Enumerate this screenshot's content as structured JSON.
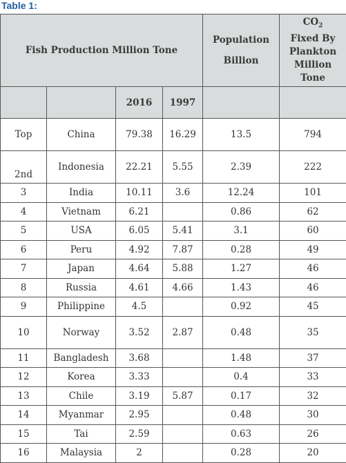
{
  "caption": "Table 1:",
  "headers": {
    "fish_production": "Fish Production Million Tone",
    "year_2016": "2016",
    "year_1997": "1997",
    "population_line1": "Population",
    "population_line2": "Billion",
    "co2_prefix": "CO",
    "co2_subscript": "2",
    "co2_line2": "Fixed By",
    "co2_line3": "Plankton",
    "co2_line4": "Million",
    "co2_line5": "Tone"
  },
  "rows": [
    {
      "rank": "Top",
      "country": "China",
      "y2016": "79.38",
      "y1997": "16.29",
      "population": "13.5",
      "co2": "794"
    },
    {
      "rank": "2nd",
      "country": "Indonesia",
      "y2016": "22.21",
      "y1997": "5.55",
      "population": "2.39",
      "co2": "222"
    },
    {
      "rank": "3",
      "country": "India",
      "y2016": "10.11",
      "y1997": "3.6",
      "population": "12.24",
      "co2": "101"
    },
    {
      "rank": "4",
      "country": "Vietnam",
      "y2016": "6.21",
      "y1997": "",
      "population": "0.86",
      "co2": "62"
    },
    {
      "rank": "5",
      "country": "USA",
      "y2016": "6.05",
      "y1997": "5.41",
      "population": "3.1",
      "co2": "60"
    },
    {
      "rank": "6",
      "country": "Peru",
      "y2016": "4.92",
      "y1997": "7.87",
      "population": "0.28",
      "co2": "49"
    },
    {
      "rank": "7",
      "country": "Japan",
      "y2016": "4.64",
      "y1997": "5.88",
      "population": "1.27",
      "co2": "46"
    },
    {
      "rank": "8",
      "country": "Russia",
      "y2016": "4.61",
      "y1997": "4.66",
      "population": "1.43",
      "co2": "46"
    },
    {
      "rank": "9",
      "country": "Philippine",
      "y2016": "4.5",
      "y1997": "",
      "population": "0.92",
      "co2": "45"
    },
    {
      "rank": "10",
      "country": "Norway",
      "y2016": "3.52",
      "y1997": "2.87",
      "population": "0.48",
      "co2": "35"
    },
    {
      "rank": "11",
      "country": "Bangladesh",
      "y2016": "3.68",
      "y1997": "",
      "population": "1.48",
      "co2": "37"
    },
    {
      "rank": "12",
      "country": "Korea",
      "y2016": "3.33",
      "y1997": "",
      "population": "0.4",
      "co2": "33"
    },
    {
      "rank": "13",
      "country": "Chile",
      "y2016": "3.19",
      "y1997": "5.87",
      "population": "0.17",
      "co2": "32"
    },
    {
      "rank": "14",
      "country": "Myanmar",
      "y2016": "2.95",
      "y1997": "",
      "population": "0.48",
      "co2": "30"
    },
    {
      "rank": "15",
      "country": "Tai",
      "y2016": "2.59",
      "y1997": "",
      "population": "0.63",
      "co2": "26"
    },
    {
      "rank": "16",
      "country": "Malaysia",
      "y2016": "2",
      "y1997": "",
      "population": "0.28",
      "co2": "20"
    }
  ]
}
